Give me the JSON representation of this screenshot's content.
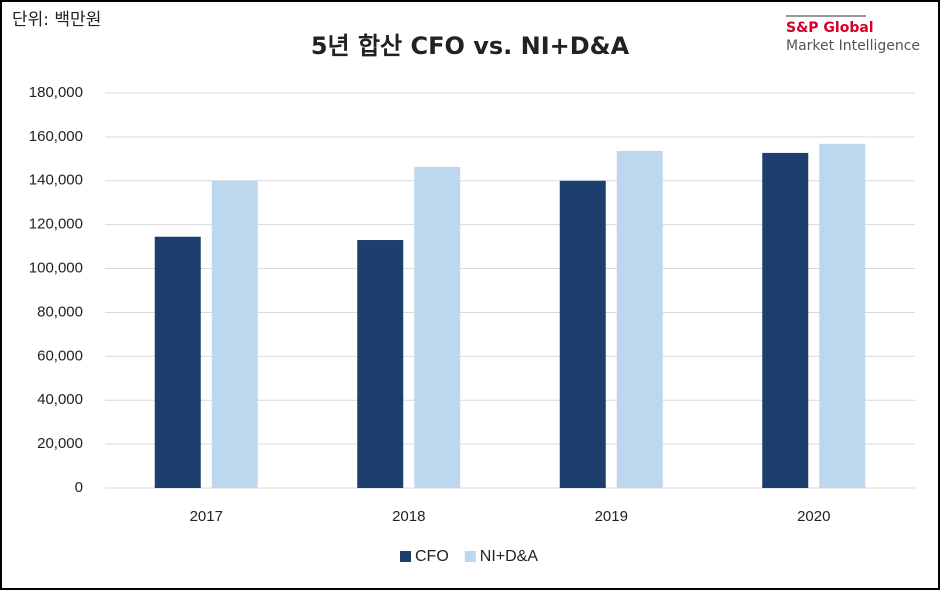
{
  "logo": {
    "brand": "S&P Global",
    "product": "Market Intelligence"
  },
  "chart_data": {
    "type": "bar",
    "title": "5년 합산 CFO vs. NI+D&A",
    "unit_note": "단위: 백만원",
    "categories": [
      "2017",
      "2018",
      "2019",
      "2020"
    ],
    "series": [
      {
        "name": "CFO",
        "color": "#1c3f6e",
        "values": [
          114500,
          113000,
          140000,
          152700
        ]
      },
      {
        "name": "NI+D&A",
        "color": "#bdd7ee",
        "values": [
          140000,
          146300,
          153600,
          156800
        ]
      }
    ],
    "ylim": [
      0,
      180000
    ],
    "yticks": [
      0,
      {
        "value": 20000,
        "label": "20,000"
      },
      {
        "value": 40000,
        "label": "40,000"
      },
      {
        "value": 60000,
        "label": "60,000"
      },
      {
        "value": 80000,
        "label": "80,000"
      },
      {
        "value": 100000,
        "label": "100,000"
      },
      {
        "value": 120000,
        "label": "120,000"
      },
      {
        "value": 140000,
        "label": "140,000"
      },
      {
        "value": 160000,
        "label": "160,000"
      },
      {
        "value": 180000,
        "label": "180,000"
      }
    ],
    "grid": true,
    "legend": "bottom"
  }
}
